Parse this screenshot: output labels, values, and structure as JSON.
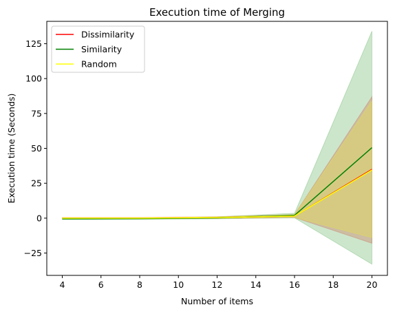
{
  "chart_data": {
    "type": "line",
    "title": "Execution time of Merging",
    "xlabel": "Number of items",
    "ylabel": "Execution time (Seconds)",
    "xlim": [
      3.2,
      20.8
    ],
    "ylim": [
      -41,
      141
    ],
    "xticks": [
      4,
      6,
      8,
      10,
      12,
      14,
      16,
      18,
      20
    ],
    "yticks": [
      -25,
      0,
      25,
      50,
      75,
      100,
      125
    ],
    "ytick_labels": [
      "−25",
      "0",
      "25",
      "50",
      "75",
      "100",
      "125"
    ],
    "grid": false,
    "legend_position": "top-left",
    "x": [
      4,
      8,
      12,
      16,
      20
    ],
    "series": [
      {
        "name": "Dissimilarity",
        "color": "#ff0000",
        "values": [
          0,
          0,
          0.4,
          1.5,
          35
        ],
        "lower": [
          -0.5,
          -0.5,
          -0.2,
          0.5,
          -18
        ],
        "upper": [
          0.5,
          0.5,
          1.0,
          2.5,
          87
        ]
      },
      {
        "name": "Similarity",
        "color": "#008000",
        "values": [
          -0.5,
          -0.4,
          0.2,
          2.0,
          50.5
        ],
        "lower": [
          -1.0,
          -0.8,
          -0.5,
          0.2,
          -33
        ],
        "upper": [
          0,
          0,
          1.0,
          3.5,
          134
        ]
      },
      {
        "name": "Random",
        "color": "#ffff00",
        "values": [
          0,
          0,
          0.4,
          1.5,
          34.5
        ],
        "lower": [
          -0.5,
          -0.5,
          -0.2,
          0.5,
          -14
        ],
        "upper": [
          0.5,
          0.5,
          1.0,
          2.5,
          84
        ]
      }
    ]
  }
}
